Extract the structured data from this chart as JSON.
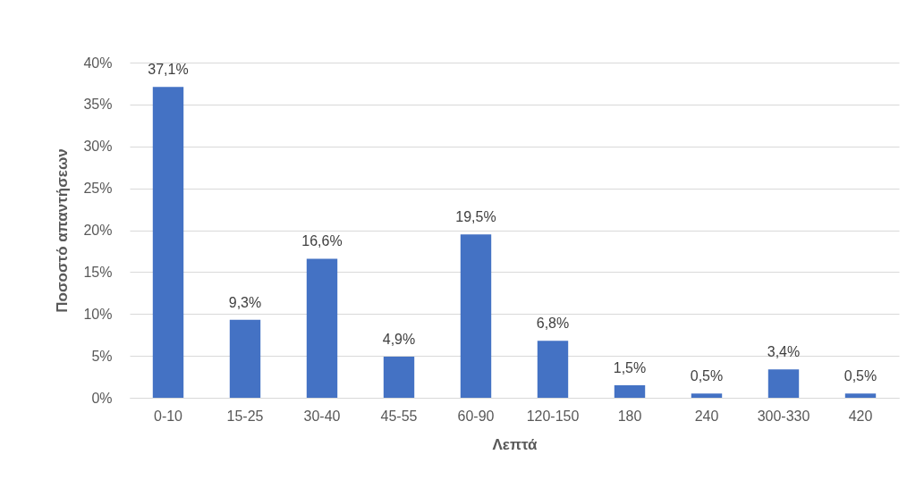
{
  "chart_data": {
    "type": "bar",
    "xlabel": "Λεπτά",
    "ylabel": "Ποσοστό απαντήσεων",
    "categories": [
      "0-10",
      "15-25",
      "30-40",
      "45-55",
      "60-90",
      "120-150",
      "180",
      "240",
      "300-330",
      "420"
    ],
    "values": [
      37.1,
      9.3,
      16.6,
      4.9,
      19.5,
      6.8,
      1.5,
      0.5,
      3.4,
      0.5
    ],
    "value_labels": [
      "37,1%",
      "9,3%",
      "16,6%",
      "4,9%",
      "19,5%",
      "6,8%",
      "1,5%",
      "0,5%",
      "3,4%",
      "0,5%"
    ],
    "color": "#4472c4",
    "ylim": [
      0,
      40
    ],
    "yticks": [
      {
        "value": 0,
        "label": "0%"
      },
      {
        "value": 5,
        "label": "5%"
      },
      {
        "value": 10,
        "label": "10%"
      },
      {
        "value": 15,
        "label": "15%"
      },
      {
        "value": 20,
        "label": "20%"
      },
      {
        "value": 25,
        "label": "25%"
      },
      {
        "value": 30,
        "label": "30%"
      },
      {
        "value": 35,
        "label": "35%"
      },
      {
        "value": 40,
        "label": "40%"
      }
    ],
    "grid": "y"
  }
}
